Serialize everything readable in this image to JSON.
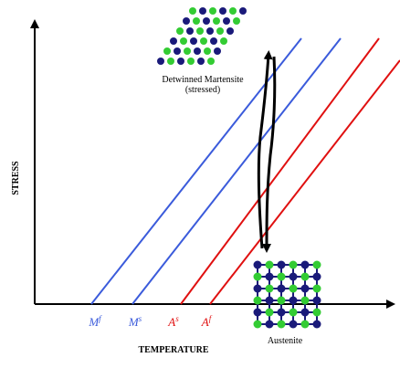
{
  "axes": {
    "y_label": "STRESS",
    "x_label": "TEMPERATURE"
  },
  "phases": {
    "martensite": [
      "Detwinned Martensite",
      "(stressed)"
    ],
    "austenite": "Austenite"
  },
  "temperatures": [
    {
      "symbol": "M",
      "sup": "f"
    },
    {
      "symbol": "M",
      "sup": "s"
    },
    {
      "symbol": "A",
      "sup": "s"
    },
    {
      "symbol": "A",
      "sup": "f"
    }
  ]
}
